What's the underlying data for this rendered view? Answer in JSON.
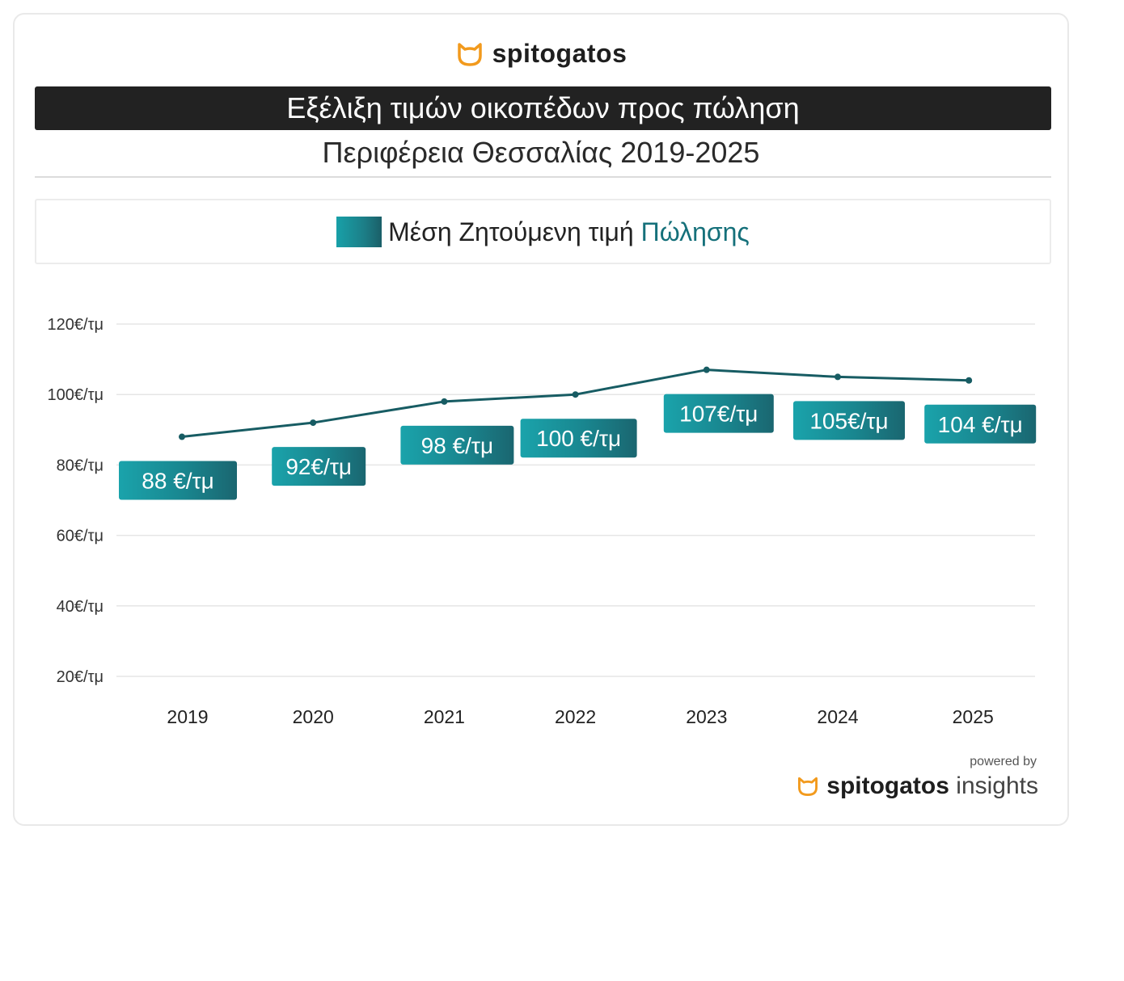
{
  "brand": {
    "name": "spitogatos",
    "accent": "#f29a1d"
  },
  "title": "Εξέλιξη τιμών οικοπέδων προς πώληση",
  "subtitle": "Περιφέρεια Θεσσαλίας 2019-2025",
  "legend": {
    "label_prefix": "Μέση Ζητούμενη τιμή",
    "label_accent": "Πώλησης",
    "color": "#1a8f98"
  },
  "footer": {
    "powered_by": "powered by",
    "brand": "spitogatos",
    "suffix": "insights"
  },
  "chart_data": {
    "type": "line",
    "categories": [
      "2019",
      "2020",
      "2021",
      "2022",
      "2023",
      "2024",
      "2025"
    ],
    "series": [
      {
        "name": "Μέση Ζητούμενη τιμή Πώλησης",
        "values": [
          88,
          92,
          98,
          100,
          107,
          105,
          104
        ],
        "color": "#175c63"
      }
    ],
    "data_labels": [
      "88 €/τμ",
      "92€/τμ",
      "98 €/τμ",
      "100 €/τμ",
      "107€/τμ",
      "105€/τμ",
      "104 €/τμ"
    ],
    "y_ticks": [
      20,
      40,
      60,
      80,
      100,
      120
    ],
    "y_tick_labels": [
      "20€/τμ",
      "40€/τμ",
      "60€/τμ",
      "80€/τμ",
      "100€/τμ",
      "120€/τμ"
    ],
    "ylim": [
      20,
      120
    ],
    "grid": true,
    "legend_position": "top"
  }
}
